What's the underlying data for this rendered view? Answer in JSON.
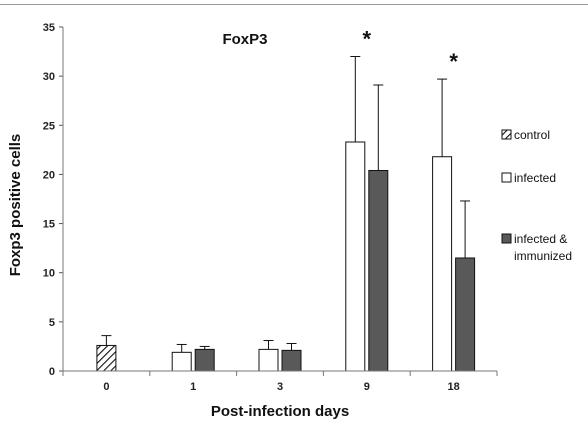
{
  "chart_data": {
    "type": "bar",
    "title": "FoxP3",
    "xlabel": "Post-infection days",
    "ylabel": "Foxp3 positive cells",
    "ylim": [
      0,
      35
    ],
    "yticks": [
      0,
      5,
      10,
      15,
      20,
      25,
      30,
      35
    ],
    "categories": [
      "0",
      "1",
      "3",
      "9",
      "18"
    ],
    "series": [
      {
        "name": "control",
        "pattern": "hatched",
        "color": "#ffffff",
        "values": [
          2.6,
          null,
          null,
          null,
          null
        ],
        "errors": [
          1.0,
          null,
          null,
          null,
          null
        ]
      },
      {
        "name": "infected",
        "pattern": "solid",
        "color": "#ffffff",
        "values": [
          null,
          1.9,
          2.2,
          23.3,
          21.8
        ],
        "errors": [
          null,
          0.8,
          0.9,
          8.7,
          7.9
        ]
      },
      {
        "name": "infected & immunized",
        "pattern": "solid",
        "color": "#595959",
        "values": [
          null,
          2.2,
          2.1,
          20.4,
          11.5
        ],
        "errors": [
          null,
          0.3,
          0.7,
          8.7,
          5.8
        ]
      }
    ],
    "annotations": [
      {
        "text": "*",
        "category": "9"
      },
      {
        "text": "*",
        "category": "18"
      }
    ],
    "legend": {
      "placement": "right"
    },
    "grid": false
  }
}
